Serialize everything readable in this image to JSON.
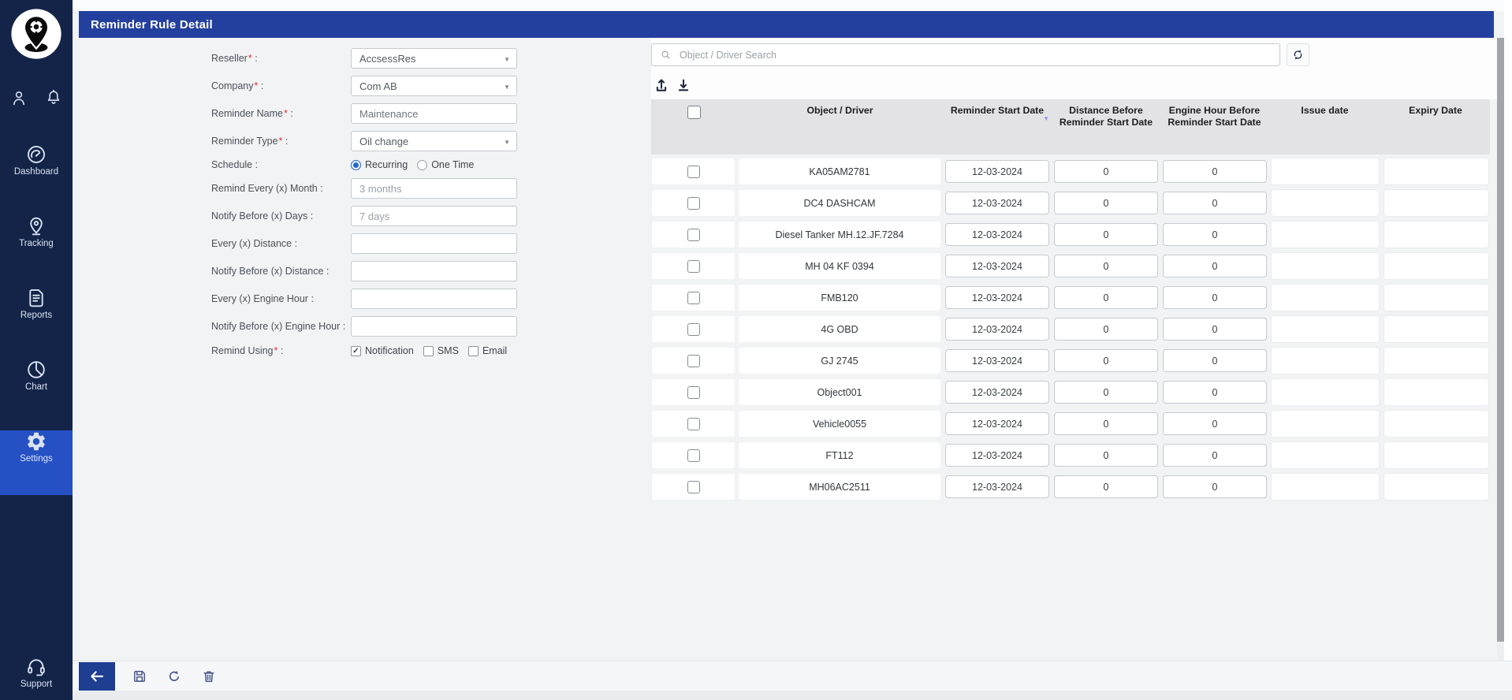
{
  "header": {
    "title": "Reminder Rule Detail"
  },
  "colors": {
    "title_bar": "#24409e",
    "sidebar": "#132448",
    "sidebar_active_item": "#2551c5",
    "accent_blue": "#2166cf",
    "table_header_bg": "#e3e3e5",
    "sort_indicator": "#8f96e8",
    "required_asterisk": "#e03131",
    "back_button": "#1e3e92"
  },
  "sidebar": {
    "top_icons": [
      "users-icon",
      "notifications-icon"
    ],
    "nav": [
      {
        "label": "Dashboard",
        "icon": "dashboard-icon",
        "active": false
      },
      {
        "label": "Tracking",
        "icon": "tracking-icon",
        "active": false
      },
      {
        "label": "Reports",
        "icon": "reports-icon",
        "active": false
      },
      {
        "label": "Chart",
        "icon": "chart-icon",
        "active": false
      },
      {
        "label": "Settings",
        "icon": "settings-icon",
        "active": true
      }
    ],
    "bottom": {
      "label": "Support",
      "icon": "support-icon"
    }
  },
  "form": {
    "fields": [
      {
        "label": "Reseller",
        "required": true,
        "control": "select",
        "value": "AccsessRes"
      },
      {
        "label": "Company",
        "required": true,
        "control": "select",
        "value": "Com AB"
      },
      {
        "label": "Reminder Name",
        "required": true,
        "control": "text",
        "value": "Maintenance",
        "placeholder": ""
      },
      {
        "label": "Reminder Type",
        "required": true,
        "control": "select",
        "value": "Oil change"
      },
      {
        "label": "Schedule",
        "required": false,
        "control": "radio",
        "options": [
          {
            "label": "Recurring",
            "selected": true
          },
          {
            "label": "One Time",
            "selected": false
          }
        ]
      },
      {
        "label": "Remind Every (x) Month",
        "required": false,
        "control": "text",
        "value": "",
        "placeholder": "3 months"
      },
      {
        "label": "Notify Before (x) Days",
        "required": false,
        "control": "text",
        "value": "",
        "placeholder": "7 days"
      },
      {
        "label": "Every (x) Distance",
        "required": false,
        "control": "text",
        "value": "",
        "placeholder": ""
      },
      {
        "label": "Notify Before (x) Distance",
        "required": false,
        "control": "text",
        "value": "",
        "placeholder": ""
      },
      {
        "label": "Every (x) Engine Hour",
        "required": false,
        "control": "text",
        "value": "",
        "placeholder": ""
      },
      {
        "label": "Notify Before (x) Engine Hour",
        "required": false,
        "control": "text",
        "value": "",
        "placeholder": ""
      },
      {
        "label": "Remind Using",
        "required": true,
        "control": "checkbox",
        "options": [
          {
            "label": "Notification",
            "checked": true
          },
          {
            "label": "SMS",
            "checked": false
          },
          {
            "label": "Email",
            "checked": false
          }
        ]
      }
    ]
  },
  "search": {
    "placeholder": "Object / Driver Search",
    "icon": "search-icon",
    "refresh_icon": "sync-icon"
  },
  "table_toolbar": {
    "icons": [
      "upload-icon",
      "download-icon"
    ]
  },
  "table": {
    "columns": [
      {
        "label": ""
      },
      {
        "label": "Object / Driver"
      },
      {
        "label": "Reminder Start Date",
        "sort_indicator": true
      },
      {
        "label": "Distance Before Reminder Start Date"
      },
      {
        "label": "Engine Hour Before Reminder Start Date"
      },
      {
        "label": "Issue date"
      },
      {
        "label": "Expiry Date"
      }
    ],
    "rows": [
      {
        "object_driver": "KA05AM2781",
        "reminder_start_date": "12-03-2024",
        "distance_before": "0",
        "engine_hour_before": "0",
        "issue_date": "",
        "expiry_date": ""
      },
      {
        "object_driver": "DC4 DASHCAM",
        "reminder_start_date": "12-03-2024",
        "distance_before": "0",
        "engine_hour_before": "0",
        "issue_date": "",
        "expiry_date": ""
      },
      {
        "object_driver": "Diesel Tanker MH.12.JF.7284",
        "reminder_start_date": "12-03-2024",
        "distance_before": "0",
        "engine_hour_before": "0",
        "issue_date": "",
        "expiry_date": ""
      },
      {
        "object_driver": "MH 04 KF 0394",
        "reminder_start_date": "12-03-2024",
        "distance_before": "0",
        "engine_hour_before": "0",
        "issue_date": "",
        "expiry_date": ""
      },
      {
        "object_driver": "FMB120",
        "reminder_start_date": "12-03-2024",
        "distance_before": "0",
        "engine_hour_before": "0",
        "issue_date": "",
        "expiry_date": ""
      },
      {
        "object_driver": "4G OBD",
        "reminder_start_date": "12-03-2024",
        "distance_before": "0",
        "engine_hour_before": "0",
        "issue_date": "",
        "expiry_date": ""
      },
      {
        "object_driver": "GJ 2745",
        "reminder_start_date": "12-03-2024",
        "distance_before": "0",
        "engine_hour_before": "0",
        "issue_date": "",
        "expiry_date": ""
      },
      {
        "object_driver": "Object001",
        "reminder_start_date": "12-03-2024",
        "distance_before": "0",
        "engine_hour_before": "0",
        "issue_date": "",
        "expiry_date": ""
      },
      {
        "object_driver": "Vehicle0055",
        "reminder_start_date": "12-03-2024",
        "distance_before": "0",
        "engine_hour_before": "0",
        "issue_date": "",
        "expiry_date": ""
      },
      {
        "object_driver": "FT112",
        "reminder_start_date": "12-03-2024",
        "distance_before": "0",
        "engine_hour_before": "0",
        "issue_date": "",
        "expiry_date": ""
      },
      {
        "object_driver": "MH06AC2511",
        "reminder_start_date": "12-03-2024",
        "distance_before": "0",
        "engine_hour_before": "0",
        "issue_date": "",
        "expiry_date": ""
      }
    ]
  },
  "toolbar": {
    "buttons": [
      {
        "name": "back-button",
        "icon": "back-icon"
      },
      {
        "name": "save-button",
        "icon": "save-icon"
      },
      {
        "name": "reset-button",
        "icon": "reset-icon"
      },
      {
        "name": "delete-button",
        "icon": "delete-icon"
      }
    ]
  }
}
